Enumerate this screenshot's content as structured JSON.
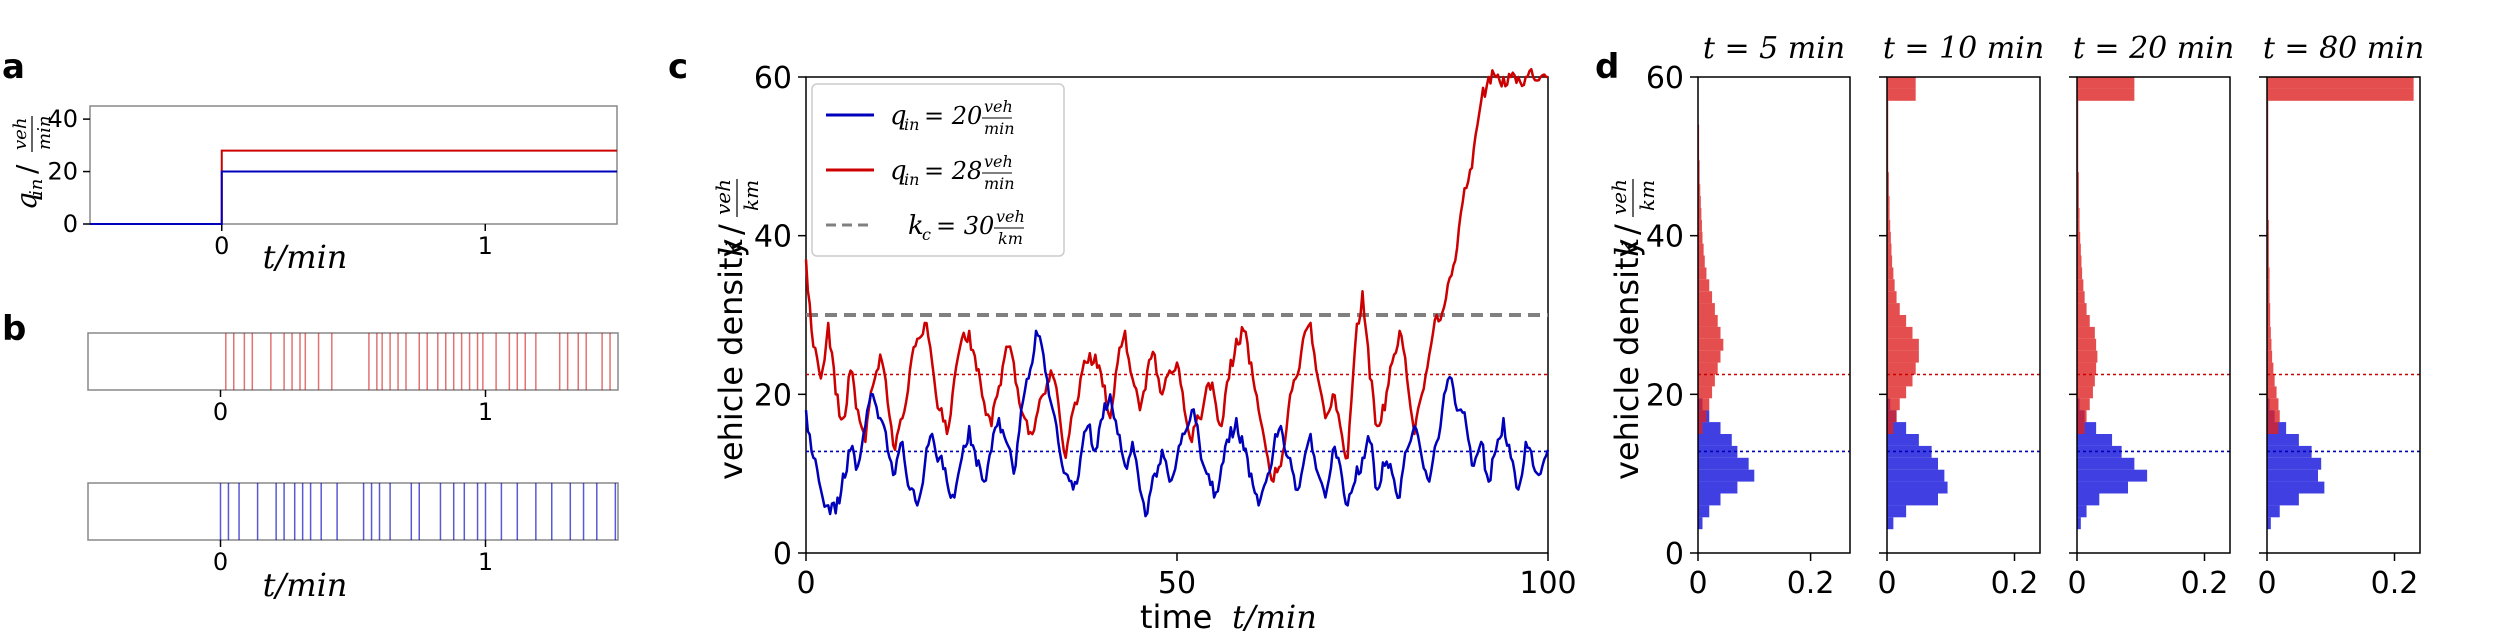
{
  "colors": {
    "red": "#cc0000",
    "blue": "#0000bb",
    "grey": "#808080",
    "red_hist": "#dd2222",
    "blue_hist": "#1f1fdd"
  },
  "chart_data": [
    {
      "panel": "a",
      "type": "line",
      "ylabel": "q_in / veh/min",
      "xlabel": "t/min",
      "xlim": [
        -0.5,
        1.5
      ],
      "ylim": [
        0,
        45
      ],
      "xticks": [
        "0",
        "1"
      ],
      "yticks": [
        "0",
        "20",
        "40"
      ],
      "series": [
        {
          "color": "red",
          "x": [
            -0.5,
            0,
            0,
            1.5
          ],
          "y": [
            0,
            0,
            28,
            28
          ]
        },
        {
          "color": "blue",
          "x": [
            -0.5,
            0,
            0,
            1.5
          ],
          "y": [
            0,
            0,
            20,
            20
          ]
        }
      ]
    },
    {
      "panel": "b",
      "type": "event raster",
      "xlabel": "t/min",
      "xlim": [
        -0.5,
        1.5
      ],
      "xticks": [
        "0",
        "1"
      ],
      "series": [
        {
          "color": "red",
          "events": [
            0.02,
            0.05,
            0.09,
            0.12,
            0.19,
            0.24,
            0.27,
            0.3,
            0.32,
            0.37,
            0.42,
            0.56,
            0.59,
            0.61,
            0.64,
            0.67,
            0.7,
            0.75,
            0.78,
            0.82,
            0.85,
            0.88,
            0.91,
            0.94,
            0.97,
            0.99,
            1.04,
            1.09,
            1.12,
            1.15,
            1.19,
            1.28,
            1.31,
            1.35,
            1.38,
            1.44,
            1.47
          ]
        },
        {
          "color": "blue",
          "events": [
            0.0,
            0.03,
            0.07,
            0.14,
            0.21,
            0.24,
            0.28,
            0.31,
            0.34,
            0.38,
            0.44,
            0.54,
            0.57,
            0.6,
            0.64,
            0.72,
            0.75,
            0.83,
            0.88,
            0.92,
            0.97,
            1.0,
            1.06,
            1.12,
            1.19,
            1.25,
            1.32,
            1.37,
            1.42,
            1.49
          ]
        }
      ]
    },
    {
      "panel": "c",
      "type": "line",
      "xlabel": "time  t/min",
      "ylabel": "vehicle density  k / veh/km",
      "xlim": [
        0,
        100
      ],
      "ylim": [
        0,
        60
      ],
      "xticks": [
        "0",
        "50",
        "100"
      ],
      "yticks": [
        "0",
        "20",
        "40",
        "60"
      ],
      "legend_position": "top-left",
      "legend": [
        {
          "label": "q_in = 20 veh/min",
          "color": "blue"
        },
        {
          "label": "q_in = 28 veh/min",
          "color": "red"
        },
        {
          "label": "k_c = 30 veh/km",
          "color": "grey",
          "dashed": true
        }
      ],
      "reference_lines": [
        {
          "y": 30,
          "color": "grey",
          "style": "dashed"
        },
        {
          "y": 22.5,
          "color": "red",
          "style": "dotted"
        },
        {
          "y": 12.8,
          "color": "blue",
          "style": "dotted"
        }
      ],
      "series": [
        {
          "color": "red",
          "x": [
            0,
            1,
            2,
            3,
            4,
            5,
            6,
            7,
            8,
            9,
            10,
            11,
            12,
            13,
            14,
            15,
            16,
            17,
            18,
            19,
            20,
            21,
            22,
            23,
            24,
            25,
            26,
            27,
            28,
            29,
            30,
            31,
            32,
            33,
            34,
            35,
            36,
            37,
            38,
            39,
            40,
            41,
            42,
            43,
            44,
            45,
            46,
            47,
            48,
            49,
            50,
            51,
            52,
            53,
            54,
            55,
            56,
            57,
            58,
            59,
            60,
            61,
            62,
            63,
            64,
            65,
            66,
            67,
            68,
            69,
            70,
            71,
            72,
            73,
            74,
            75,
            76,
            77,
            78,
            79,
            80,
            81,
            82,
            83,
            84,
            85,
            86,
            87,
            88,
            89,
            90,
            91,
            92,
            93,
            94,
            95,
            96,
            97,
            98,
            99,
            100
          ],
          "y": [
            37,
            26,
            22,
            29,
            20,
            17,
            23,
            18,
            14,
            21,
            25,
            19,
            13,
            17,
            23,
            27,
            29,
            24,
            18,
            15,
            22,
            27,
            28,
            23,
            19,
            16,
            21,
            26,
            24,
            18,
            15,
            17,
            20,
            23,
            19,
            12,
            18,
            22,
            24,
            25,
            21,
            17,
            24,
            28,
            22,
            18,
            23,
            25,
            20,
            23,
            24,
            18,
            14,
            17,
            21,
            20,
            16,
            22,
            27,
            28,
            24,
            18,
            13,
            9,
            11,
            18,
            22,
            27,
            29,
            22,
            17,
            20,
            16,
            12,
            26,
            33,
            22,
            16,
            18,
            24,
            28,
            22,
            15,
            20,
            25,
            30,
            31,
            35,
            41,
            46,
            51,
            57,
            60,
            60,
            60,
            60,
            60,
            60,
            60,
            60,
            60
          ]
        },
        {
          "color": "blue",
          "x": [
            0,
            1,
            2,
            3,
            4,
            5,
            6,
            7,
            8,
            9,
            10,
            11,
            12,
            13,
            14,
            15,
            16,
            17,
            18,
            19,
            20,
            21,
            22,
            23,
            24,
            25,
            26,
            27,
            28,
            29,
            30,
            31,
            32,
            33,
            34,
            35,
            36,
            37,
            38,
            39,
            40,
            41,
            42,
            43,
            44,
            45,
            46,
            47,
            48,
            49,
            50,
            51,
            52,
            53,
            54,
            55,
            56,
            57,
            58,
            59,
            60,
            61,
            62,
            63,
            64,
            65,
            66,
            67,
            68,
            69,
            70,
            71,
            72,
            73,
            74,
            75,
            76,
            77,
            78,
            79,
            80,
            81,
            82,
            83,
            84,
            85,
            86,
            87,
            88,
            89,
            90,
            91,
            92,
            93,
            94,
            95,
            96,
            97,
            98,
            99,
            100
          ],
          "y": [
            18,
            12,
            8,
            6,
            5,
            10,
            13,
            11,
            16,
            20,
            17,
            13,
            10,
            14,
            8,
            6,
            11,
            15,
            12,
            9,
            7,
            12,
            16,
            11,
            9,
            13,
            17,
            14,
            10,
            18,
            22,
            28,
            25,
            19,
            14,
            10,
            8,
            12,
            16,
            13,
            17,
            20,
            15,
            11,
            14,
            8,
            5,
            10,
            13,
            9,
            12,
            15,
            18,
            14,
            10,
            7,
            11,
            14,
            17,
            13,
            10,
            6,
            9,
            13,
            16,
            12,
            8,
            11,
            15,
            10,
            7,
            13,
            11,
            6,
            9,
            12,
            14,
            8,
            11,
            10,
            7,
            13,
            16,
            12,
            9,
            14,
            20,
            22,
            18,
            16,
            11,
            14,
            9,
            13,
            17,
            12,
            8,
            14,
            11,
            10,
            13
          ]
        }
      ]
    },
    {
      "panel": "d",
      "type": "histogram",
      "ylabel": "vehicle density  k / veh/km",
      "ylim": [
        0,
        60
      ],
      "yticks": [
        "0",
        "20",
        "40",
        "60"
      ],
      "xticks": [
        "0",
        "0.2"
      ],
      "bin_width": 1.5,
      "reference_lines": [
        {
          "y": 22.5,
          "color": "red",
          "style": "dotted"
        },
        {
          "y": 12.8,
          "color": "blue",
          "style": "dotted"
        }
      ],
      "subplots": [
        {
          "title": "t = 5 min",
          "xlim": [
            0,
            0.27
          ],
          "red": {
            "bins": [
              15,
              16.5,
              18,
              19.5,
              21,
              22.5,
              24,
              25.5,
              27,
              28.5,
              30,
              31.5,
              33,
              34.5,
              36,
              37.5,
              39,
              40.5,
              42,
              43.5,
              45,
              46.5,
              48,
              49.5,
              51,
              52.5,
              54,
              55.5,
              57,
              58.5
            ],
            "values": [
              0.008,
              0.015,
              0.02,
              0.025,
              0.03,
              0.035,
              0.04,
              0.045,
              0.04,
              0.035,
              0.03,
              0.025,
              0.02,
              0.015,
              0.012,
              0.01,
              0.008,
              0.007,
              0.006,
              0.005,
              0.004,
              0.003,
              0.003,
              0.002,
              0.002,
              0.002,
              0.001,
              0.001,
              0.001,
              0.001
            ]
          },
          "blue": {
            "bins": [
              3,
              4.5,
              6,
              7.5,
              9,
              10.5,
              12,
              13.5,
              15,
              16.5,
              18
            ],
            "values": [
              0.008,
              0.02,
              0.04,
              0.07,
              0.1,
              0.09,
              0.07,
              0.06,
              0.04,
              0.02,
              0.008
            ]
          }
        },
        {
          "title": "t = 10 min",
          "xlim": [
            0,
            0.24
          ],
          "red": {
            "bins": [
              15,
              16.5,
              18,
              19.5,
              21,
              22.5,
              24,
              25.5,
              27,
              28.5,
              30,
              31.5,
              33,
              34.5,
              36,
              37.5,
              39,
              40.5,
              42,
              43.5,
              45,
              46.5,
              48,
              49.5,
              51,
              52.5,
              54,
              55.5,
              57,
              58.5
            ],
            "values": [
              0.01,
              0.015,
              0.02,
              0.03,
              0.04,
              0.045,
              0.05,
              0.05,
              0.04,
              0.03,
              0.02,
              0.015,
              0.012,
              0.01,
              0.008,
              0.007,
              0.006,
              0.005,
              0.004,
              0.004,
              0.003,
              0.003,
              0.002,
              0.002,
              0.002,
              0.002,
              0.002,
              0.002,
              0.045,
              0.045
            ]
          },
          "blue": {
            "bins": [
              3,
              4.5,
              6,
              7.5,
              9,
              10.5,
              12,
              13.5,
              15,
              16.5,
              18
            ],
            "values": [
              0.01,
              0.03,
              0.08,
              0.095,
              0.09,
              0.08,
              0.07,
              0.05,
              0.03,
              0.015,
              0.005
            ]
          }
        },
        {
          "title": "t = 20 min",
          "xlim": [
            0,
            0.24
          ],
          "red": {
            "bins": [
              15,
              16.5,
              18,
              19.5,
              21,
              22.5,
              24,
              25.5,
              27,
              28.5,
              30,
              31.5,
              33,
              34.5,
              36,
              37.5,
              39,
              40.5,
              42,
              43.5,
              45,
              46.5,
              48,
              49.5,
              51,
              52.5,
              54,
              55.5,
              57,
              58.5
            ],
            "values": [
              0.012,
              0.015,
              0.02,
              0.025,
              0.028,
              0.03,
              0.032,
              0.03,
              0.028,
              0.02,
              0.015,
              0.012,
              0.01,
              0.008,
              0.007,
              0.006,
              0.005,
              0.004,
              0.004,
              0.003,
              0.003,
              0.003,
              0.002,
              0.002,
              0.002,
              0.002,
              0.002,
              0.002,
              0.09,
              0.09
            ]
          },
          "blue": {
            "bins": [
              3,
              4.5,
              6,
              7.5,
              9,
              10.5,
              12,
              13.5,
              15,
              16.5,
              18
            ],
            "values": [
              0.006,
              0.015,
              0.035,
              0.08,
              0.11,
              0.09,
              0.07,
              0.055,
              0.03,
              0.012,
              0.004
            ]
          }
        },
        {
          "title": "t = 80 min",
          "xlim": [
            0,
            0.24
          ],
          "red": {
            "bins": [
              15,
              16.5,
              18,
              19.5,
              21,
              22.5,
              24,
              25.5,
              27,
              28.5,
              30,
              31.5,
              33,
              34.5,
              36,
              37.5,
              39,
              40.5,
              42,
              43.5,
              45,
              46.5,
              48,
              49.5,
              51,
              52.5,
              54,
              55.5,
              57,
              58.5
            ],
            "values": [
              0.018,
              0.02,
              0.018,
              0.015,
              0.012,
              0.01,
              0.008,
              0.007,
              0.006,
              0.005,
              0.005,
              0.004,
              0.004,
              0.004,
              0.003,
              0.003,
              0.003,
              0.003,
              0.002,
              0.002,
              0.002,
              0.002,
              0.002,
              0.002,
              0.002,
              0.002,
              0.002,
              0.002,
              0.23,
              0.23
            ]
          },
          "blue": {
            "bins": [
              3,
              4.5,
              6,
              7.5,
              9,
              10.5,
              12,
              13.5,
              15,
              16.5,
              18
            ],
            "values": [
              0.006,
              0.02,
              0.05,
              0.09,
              0.08,
              0.085,
              0.07,
              0.05,
              0.03,
              0.012,
              0.004
            ]
          }
        }
      ]
    }
  ],
  "labels": {
    "panel_a": "a",
    "panel_b": "b",
    "panel_c": "c",
    "panel_d": "d",
    "a_xlabel": "t/min",
    "b_xlabel": "t/min",
    "c_xlabel_word": "time",
    "c_xlabel_math": "t/min",
    "c_ylabel_word": "vehicle density",
    "d_ylabel_word": "vehicle density",
    "legend_blue": "q_in = 20 veh/min",
    "legend_red": "q_in = 28 veh/min",
    "legend_grey": "k_c = 30 veh/km",
    "d_titles": [
      "t = 5 min",
      "t = 10 min",
      "t = 20 min",
      "t = 80 min"
    ]
  }
}
